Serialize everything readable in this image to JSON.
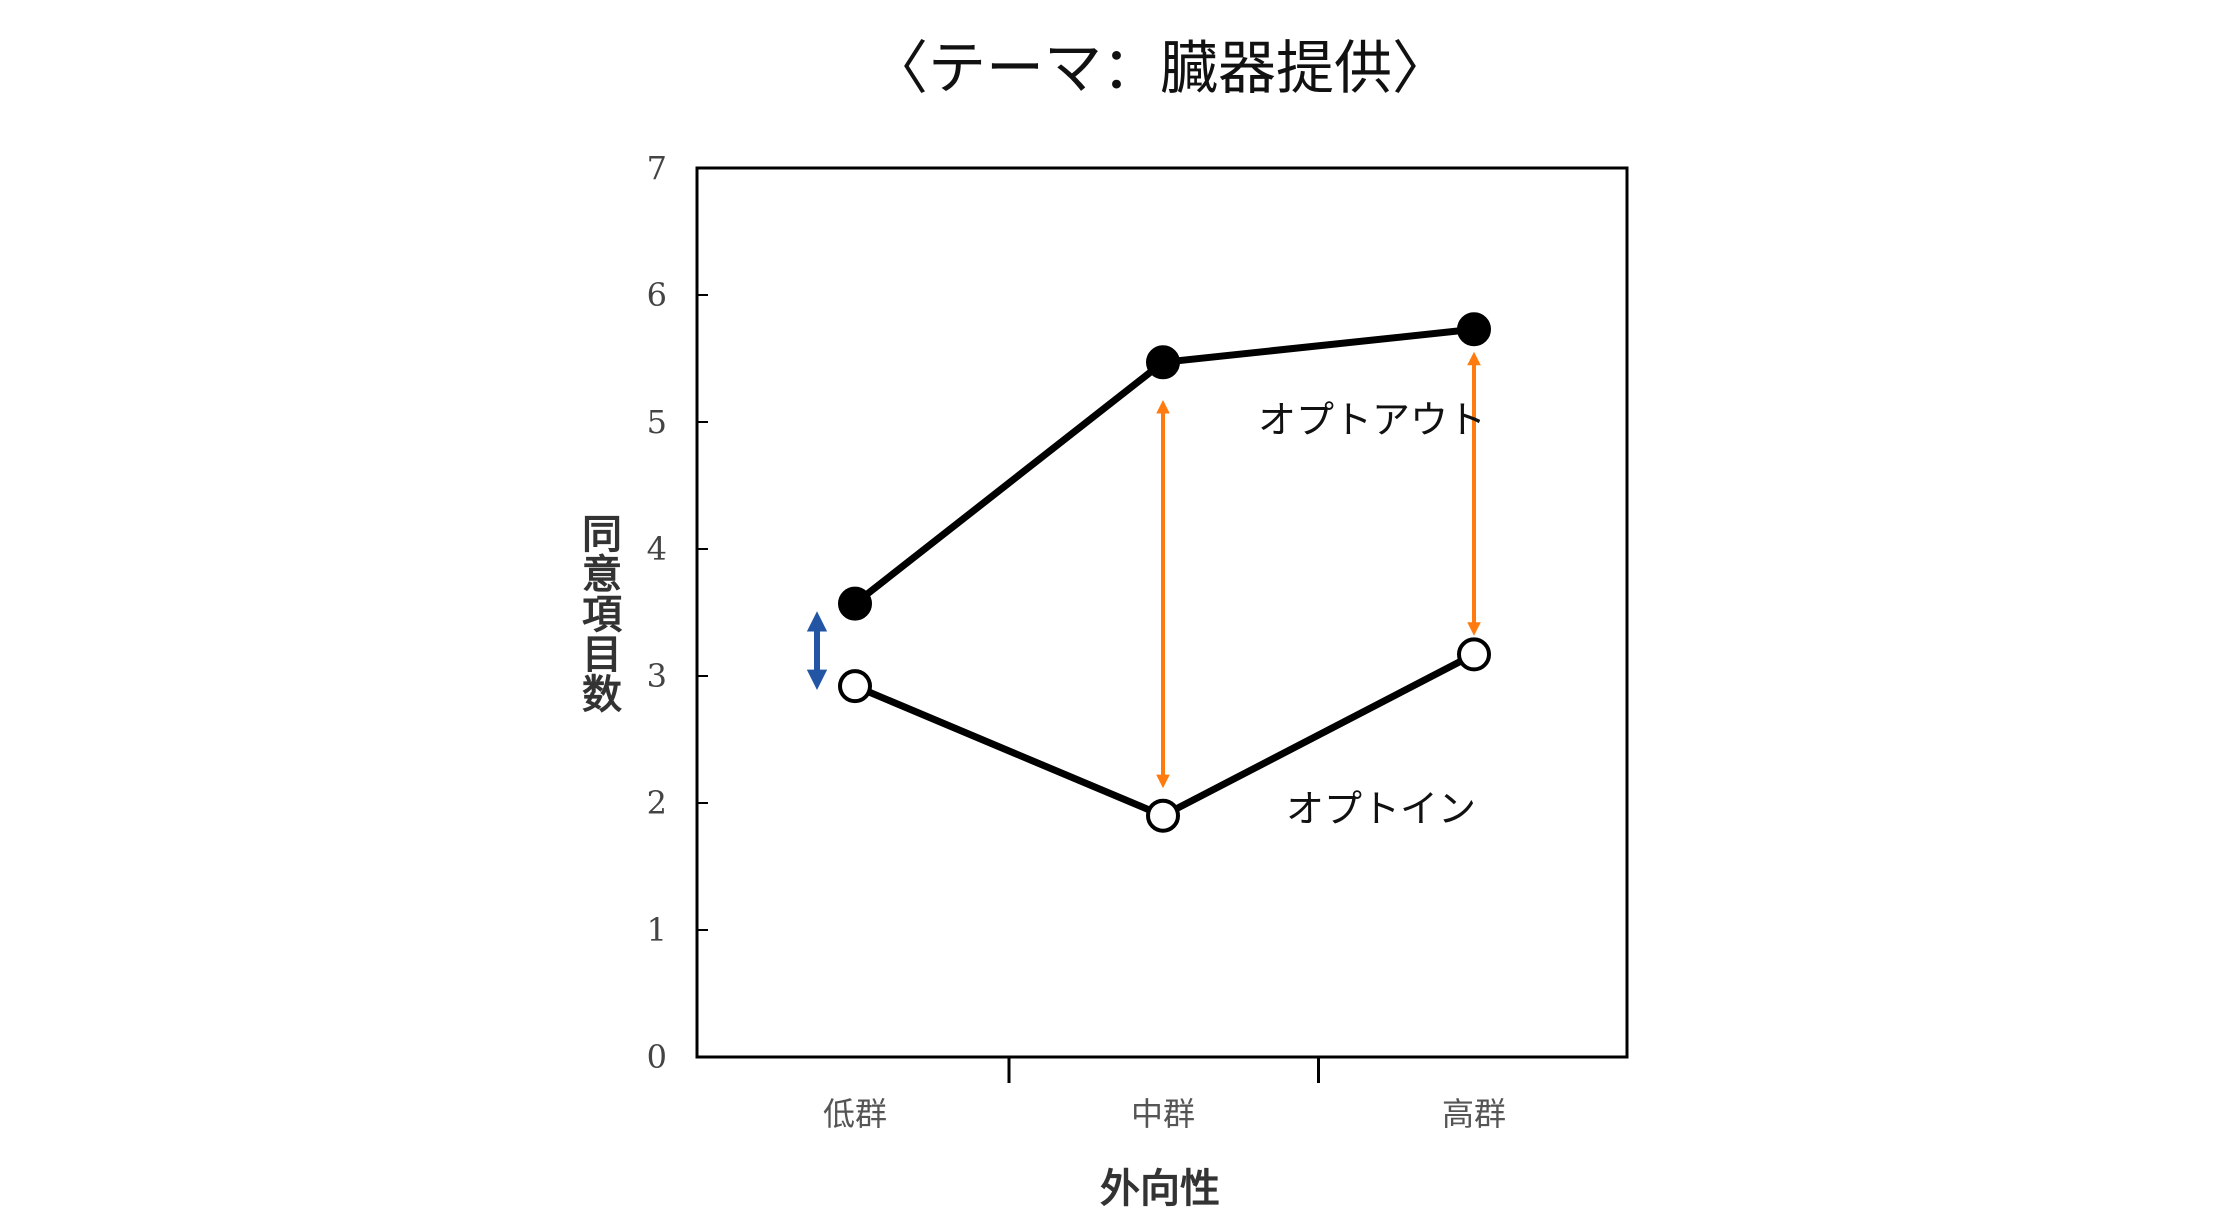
{
  "chart_data": {
    "type": "line",
    "title": "〈テーマ：臓器提供〉",
    "xlabel": "外向性",
    "ylabel": "同意項目数",
    "categories": [
      "低群",
      "中群",
      "高群"
    ],
    "ylim": [
      0,
      7
    ],
    "yticks": [
      "0",
      "1",
      "2",
      "3",
      "4",
      "5",
      "6",
      "7"
    ],
    "grid": false,
    "series": [
      {
        "name": "オプトアウト",
        "values": [
          3.57,
          5.47,
          5.73
        ],
        "marker": "filled-circle",
        "color": "#000000"
      },
      {
        "name": "オプトイン",
        "values": [
          2.92,
          1.9,
          3.17
        ],
        "marker": "open-circle",
        "color": "#000000"
      }
    ],
    "annotations": [
      {
        "type": "double-arrow",
        "category": "低群",
        "from": 3.43,
        "to": 2.97,
        "color": "#2255a4"
      },
      {
        "type": "double-arrow",
        "category": "中群",
        "from": 5.12,
        "to": 2.17,
        "color": "#ff7b0f"
      },
      {
        "type": "double-arrow",
        "category": "高群",
        "from": 5.5,
        "to": 3.37,
        "color": "#ff7b0f"
      }
    ]
  }
}
